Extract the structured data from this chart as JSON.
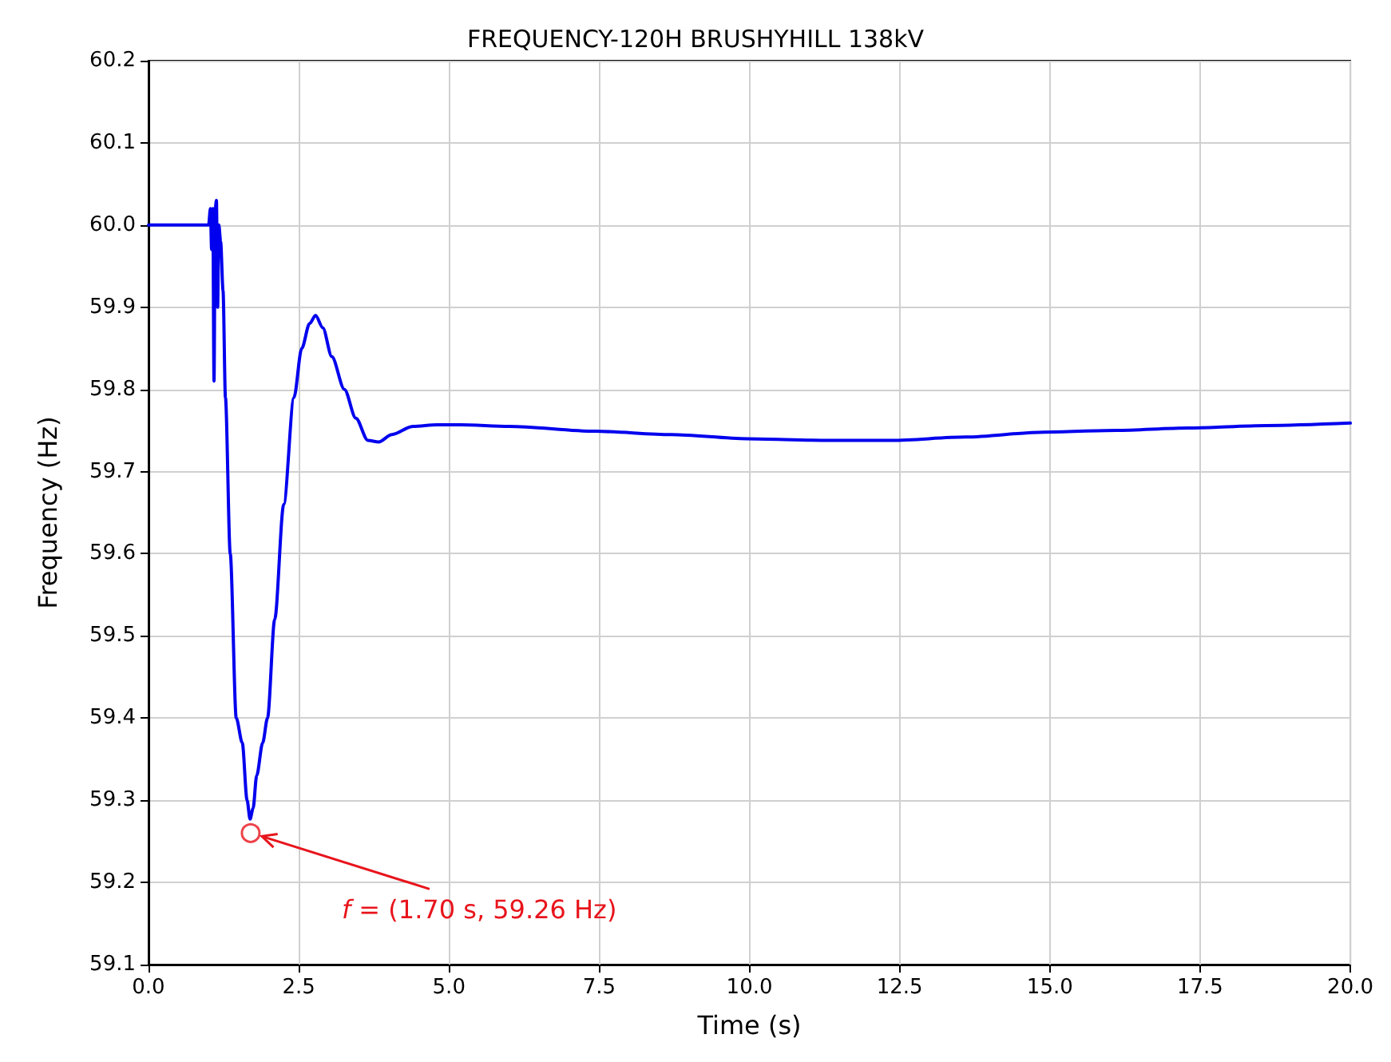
{
  "chart_data": {
    "type": "line",
    "title": "FREQUENCY-120H BRUSHYHILL 138kV",
    "xlabel": "Time (s)",
    "ylabel": "Frequency (Hz)",
    "x": [
      0,
      0.5,
      1.0,
      1.03,
      1.05,
      1.07,
      1.09,
      1.11,
      1.13,
      1.15,
      1.17,
      1.2,
      1.24,
      1.28,
      1.36,
      1.46,
      1.56,
      1.64,
      1.69,
      1.74,
      1.8,
      1.9,
      1.98,
      2.1,
      2.25,
      2.42,
      2.55,
      2.68,
      2.78,
      2.9,
      3.05,
      3.26,
      3.45,
      3.65,
      3.83,
      4.05,
      4.4,
      4.8,
      5.19,
      6.0,
      7.43,
      8.7,
      9.96,
      11.2,
      12.37,
      13.6,
      14.9,
      16.1,
      17.3,
      18.6,
      20.0
    ],
    "series": [
      {
        "color": "#0000ee",
        "values": [
          60.0,
          60.0,
          60.0,
          60.02,
          59.97,
          60.02,
          59.81,
          60.02,
          60.03,
          59.9,
          60.0,
          59.98,
          59.92,
          59.79,
          59.6,
          59.4,
          59.37,
          59.3,
          59.277,
          59.29,
          59.33,
          59.37,
          59.4,
          59.52,
          59.66,
          59.79,
          59.85,
          59.88,
          59.89,
          59.875,
          59.84,
          59.8,
          59.765,
          59.738,
          59.736,
          59.745,
          59.755,
          59.757,
          59.757,
          59.755,
          59.749,
          59.745,
          59.74,
          59.738,
          59.738,
          59.742,
          59.748,
          59.75,
          59.753,
          59.756,
          59.759
        ]
      }
    ],
    "xlim": [
      0,
      20
    ],
    "xticks": [
      {
        "value": 0,
        "label": "0.0"
      },
      2.5,
      {
        "value": 5,
        "label": "5.0"
      },
      7.5,
      {
        "value": 10,
        "label": "10.0"
      },
      12.5,
      {
        "value": 15,
        "label": "15.0"
      },
      17.5,
      {
        "value": 20,
        "label": "20.0"
      }
    ],
    "ylim": [
      59.1,
      60.2
    ],
    "yticks": [
      59.1,
      59.2,
      59.3,
      59.4,
      59.5,
      59.6,
      59.7,
      59.8,
      59.9,
      {
        "value": 60,
        "label": "60.0"
      },
      60.1,
      60.2
    ],
    "annotations": [
      {
        "text": "f = (1.70 s, 59.26 Hz)",
        "x": 1.7,
        "y": 59.26
      }
    ],
    "grid": true,
    "marker": "none",
    "line_style": "solid"
  }
}
